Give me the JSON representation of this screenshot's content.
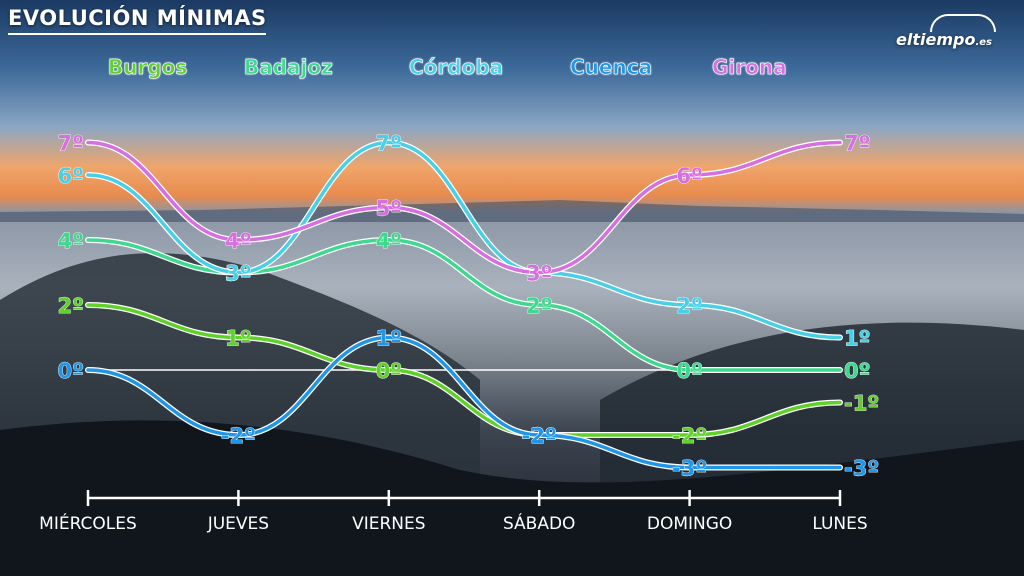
{
  "title": "EVOLUCIÓN MÍNIMAS",
  "logo": {
    "text": "eltiempo",
    "domain": ".es"
  },
  "chart_data": {
    "type": "line",
    "categories": [
      "MIÉRCOLES",
      "JUEVES",
      "VIERNES",
      "SÁBADO",
      "DOMINGO",
      "LUNES"
    ],
    "unit": "º",
    "ylim": [
      -3,
      7
    ],
    "series": [
      {
        "name": "Burgos",
        "color": "#5fd12a",
        "values": [
          2,
          1,
          0,
          -2,
          -2,
          -1
        ]
      },
      {
        "name": "Badajoz",
        "color": "#3ed88f",
        "values": [
          4,
          3,
          4,
          2,
          0,
          0
        ]
      },
      {
        "name": "Córdoba",
        "color": "#49cfe6",
        "values": [
          6,
          3,
          7,
          3,
          2,
          1
        ]
      },
      {
        "name": "Cuenca",
        "color": "#2196e6",
        "values": [
          0,
          -2,
          1,
          -2,
          -3,
          -3
        ]
      },
      {
        "name": "Girona",
        "color": "#d66fe0",
        "values": [
          7,
          4,
          5,
          3,
          6,
          7
        ]
      }
    ]
  }
}
